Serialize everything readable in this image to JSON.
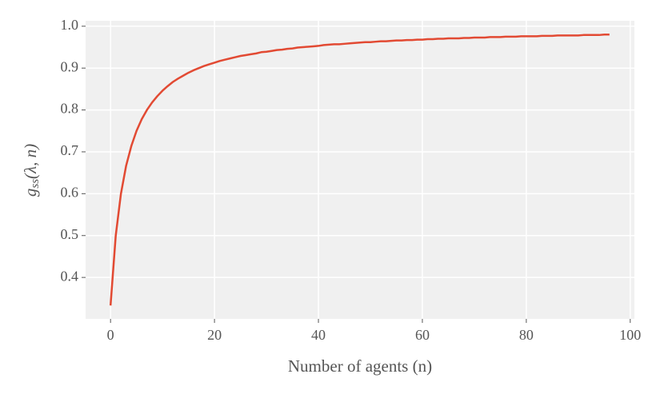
{
  "chart_data": {
    "type": "line",
    "xlabel": "Number of agents (n)",
    "ylabel": {
      "base": "g",
      "sub": "ss",
      "args": "(λ, n)"
    },
    "x": [
      0,
      1,
      2,
      3,
      4,
      5,
      6,
      7,
      8,
      9,
      10,
      11,
      12,
      13,
      14,
      15,
      16,
      17,
      18,
      19,
      20,
      21,
      22,
      23,
      24,
      25,
      26,
      27,
      28,
      29,
      30,
      31,
      32,
      33,
      34,
      35,
      36,
      37,
      38,
      39,
      40,
      41,
      42,
      43,
      44,
      45,
      46,
      47,
      48,
      49,
      50,
      51,
      52,
      53,
      54,
      55,
      56,
      57,
      58,
      59,
      60,
      61,
      62,
      63,
      64,
      65,
      66,
      67,
      68,
      69,
      70,
      71,
      72,
      73,
      74,
      75,
      76,
      77,
      78,
      79,
      80,
      81,
      82,
      83,
      84,
      85,
      86,
      87,
      88,
      89,
      90,
      91,
      92,
      93,
      94,
      95,
      96
    ],
    "series": [
      {
        "color": "#e24a33",
        "values": [
          0.333,
          0.5,
          0.6,
          0.667,
          0.714,
          0.75,
          0.778,
          0.8,
          0.818,
          0.833,
          0.846,
          0.857,
          0.867,
          0.875,
          0.882,
          0.889,
          0.895,
          0.9,
          0.905,
          0.909,
          0.913,
          0.917,
          0.92,
          0.923,
          0.926,
          0.929,
          0.931,
          0.933,
          0.935,
          0.938,
          0.939,
          0.941,
          0.943,
          0.944,
          0.946,
          0.947,
          0.949,
          0.95,
          0.951,
          0.952,
          0.953,
          0.955,
          0.956,
          0.957,
          0.957,
          0.958,
          0.959,
          0.96,
          0.961,
          0.962,
          0.962,
          0.963,
          0.964,
          0.964,
          0.965,
          0.966,
          0.966,
          0.967,
          0.967,
          0.968,
          0.968,
          0.969,
          0.969,
          0.97,
          0.97,
          0.971,
          0.971,
          0.971,
          0.972,
          0.972,
          0.973,
          0.973,
          0.973,
          0.974,
          0.974,
          0.974,
          0.975,
          0.975,
          0.975,
          0.976,
          0.976,
          0.976,
          0.976,
          0.977,
          0.977,
          0.977,
          0.978,
          0.978,
          0.978,
          0.978,
          0.978,
          0.979,
          0.979,
          0.979,
          0.979,
          0.98,
          0.98
        ]
      }
    ],
    "xlim": [
      -4.8,
      100.8
    ],
    "ylim": [
      0.301,
      1.013
    ],
    "xticks": [
      0,
      20,
      40,
      60,
      80,
      100
    ],
    "yticks": [
      0.4,
      0.5,
      0.6,
      0.7,
      0.8,
      0.9,
      {
        "value": 1,
        "label": "1.0"
      }
    ],
    "grid": true
  }
}
